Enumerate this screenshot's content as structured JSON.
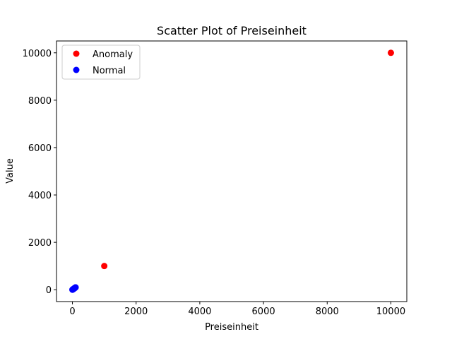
{
  "chart_data": {
    "type": "scatter",
    "title": "Scatter Plot of Preiseinheit",
    "xlabel": "Preiseinheit",
    "ylabel": "Value",
    "xlim": [
      -500,
      10500
    ],
    "ylim": [
      -500,
      10500
    ],
    "xticks": [
      0,
      2000,
      4000,
      6000,
      8000,
      10000
    ],
    "yticks": [
      0,
      2000,
      4000,
      6000,
      8000,
      10000
    ],
    "grid": false,
    "legend_position": "top-left",
    "series": [
      {
        "name": "Anomaly",
        "color": "#ff0000",
        "points": [
          {
            "x": 1000,
            "y": 1000
          },
          {
            "x": 10000,
            "y": 10000
          }
        ]
      },
      {
        "name": "Normal",
        "color": "#0000ff",
        "points": [
          {
            "x": 0,
            "y": 0
          },
          {
            "x": 5,
            "y": 5
          },
          {
            "x": 10,
            "y": 10
          },
          {
            "x": 15,
            "y": 15
          },
          {
            "x": 20,
            "y": 20
          },
          {
            "x": 25,
            "y": 25
          },
          {
            "x": 30,
            "y": 30
          },
          {
            "x": 35,
            "y": 35
          },
          {
            "x": 40,
            "y": 40
          },
          {
            "x": 45,
            "y": 45
          },
          {
            "x": 50,
            "y": 50
          },
          {
            "x": 55,
            "y": 55
          },
          {
            "x": 60,
            "y": 60
          },
          {
            "x": 65,
            "y": 65
          },
          {
            "x": 70,
            "y": 70
          },
          {
            "x": 75,
            "y": 75
          },
          {
            "x": 80,
            "y": 80
          },
          {
            "x": 85,
            "y": 85
          },
          {
            "x": 90,
            "y": 90
          },
          {
            "x": 95,
            "y": 95
          },
          {
            "x": 100,
            "y": 100
          }
        ]
      }
    ]
  }
}
